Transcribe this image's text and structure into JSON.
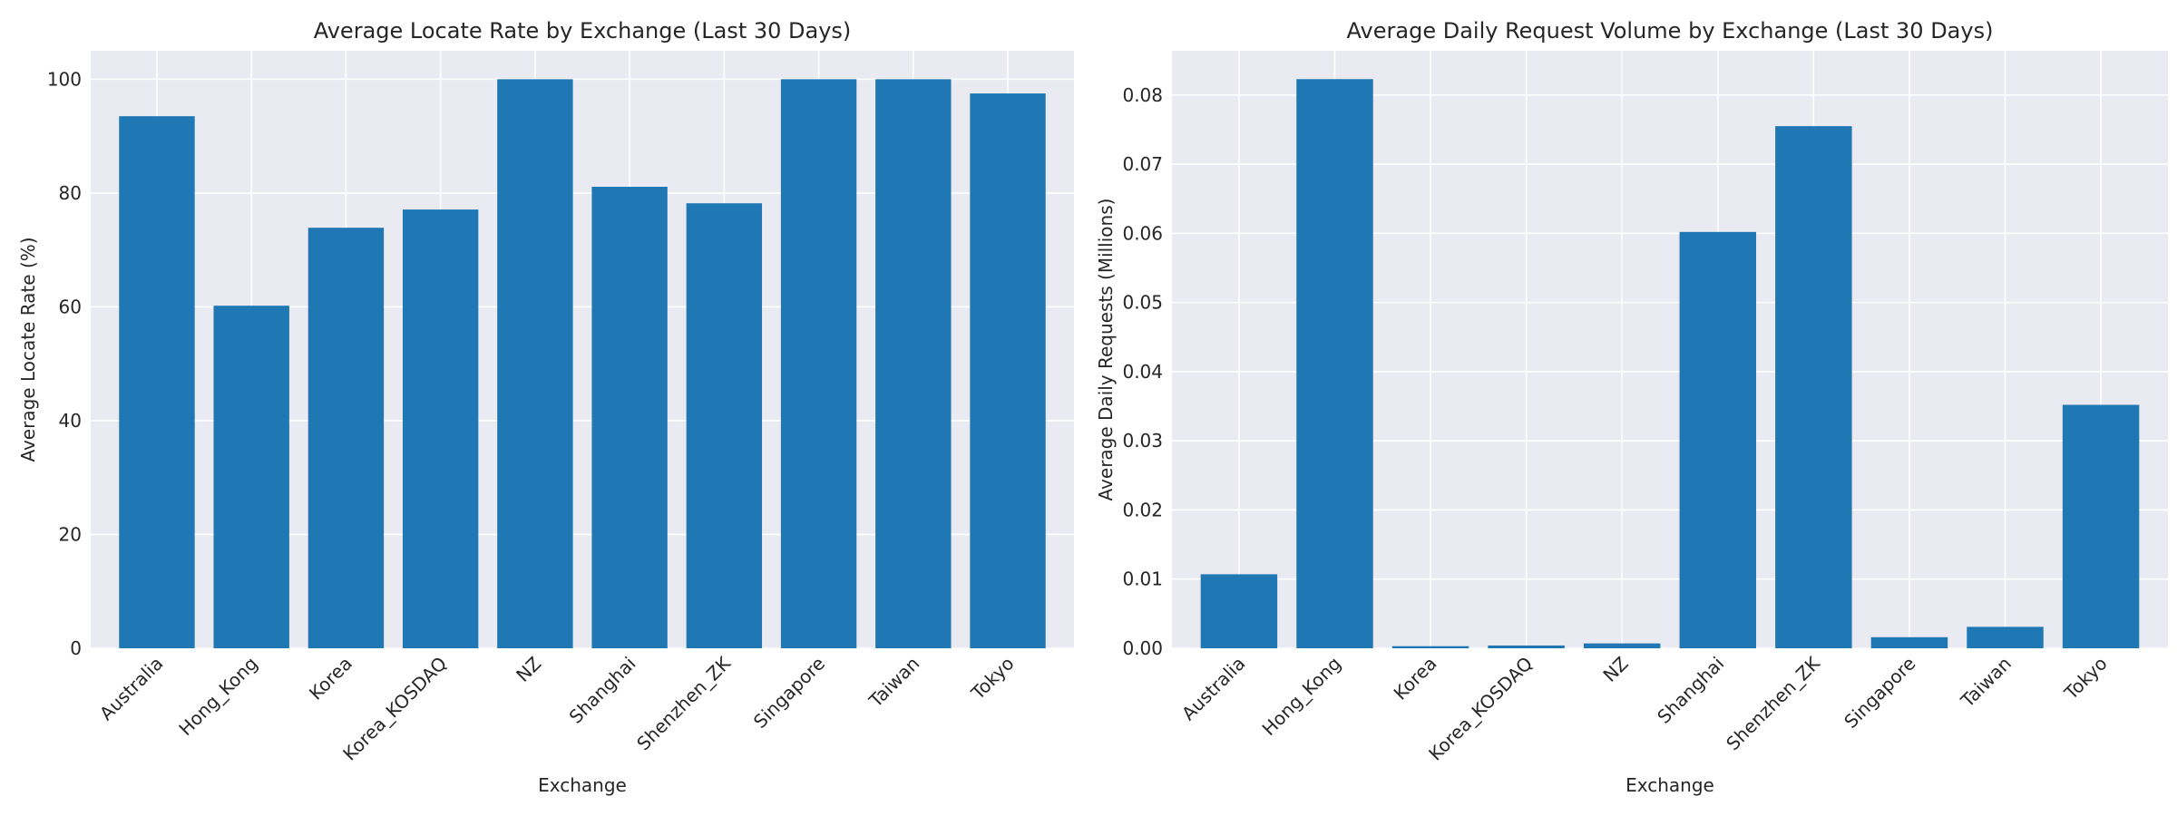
{
  "chart_data": [
    {
      "type": "bar",
      "title": "Average Locate Rate by Exchange (Last 30 Days)",
      "xlabel": "Exchange",
      "ylabel": "Average Locate Rate (%)",
      "categories": [
        "Australia",
        "Hong_Kong",
        "Korea",
        "Korea_KOSDAQ",
        "NZ",
        "Shanghai",
        "Shenzhen_ZK",
        "Singapore",
        "Taiwan",
        "Tokyo"
      ],
      "values": [
        93.5,
        60.2,
        73.9,
        77.1,
        100.0,
        81.1,
        78.2,
        100.0,
        100.0,
        97.5
      ],
      "ylim": [
        0,
        105
      ],
      "yticks": [
        0,
        20,
        40,
        60,
        80,
        100
      ],
      "ytick_labels": [
        "0",
        "20",
        "40",
        "60",
        "80",
        "100"
      ],
      "grid": true,
      "bar_color": "#1f77b4"
    },
    {
      "type": "bar",
      "title": "Average Daily Request Volume by Exchange (Last 30 Days)",
      "xlabel": "Exchange",
      "ylabel": "Average Daily Requests (Millions)",
      "categories": [
        "Australia",
        "Hong_Kong",
        "Korea",
        "Korea_KOSDAQ",
        "NZ",
        "Shanghai",
        "Shenzhen_ZK",
        "Singapore",
        "Taiwan",
        "Tokyo"
      ],
      "values": [
        0.0107,
        0.0823,
        0.0003,
        0.0004,
        0.0007,
        0.0602,
        0.0755,
        0.0016,
        0.0031,
        0.0352
      ],
      "ylim": [
        0,
        0.0864
      ],
      "yticks": [
        0,
        0.01,
        0.02,
        0.03,
        0.04,
        0.05,
        0.06,
        0.07,
        0.08
      ],
      "ytick_labels": [
        "0.00",
        "0.01",
        "0.02",
        "0.03",
        "0.04",
        "0.05",
        "0.06",
        "0.07",
        "0.08"
      ],
      "grid": true,
      "bar_color": "#1f77b4"
    }
  ]
}
